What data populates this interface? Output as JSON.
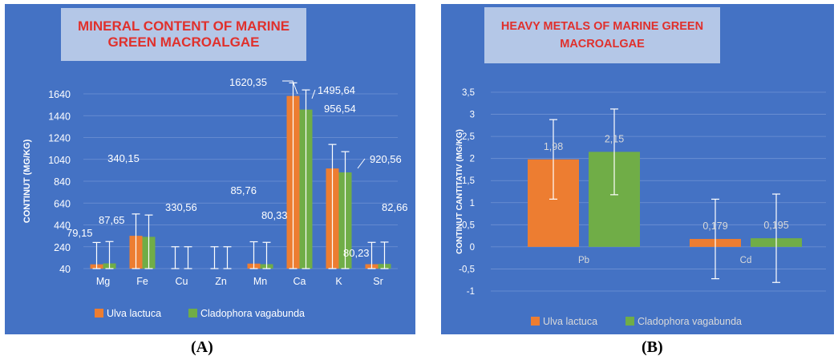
{
  "colors": {
    "background": "#4472c4",
    "title_box": "#b4c7e7",
    "title_text": "#e0302c",
    "ulva": "#ed7d31",
    "cladophora": "#70ad47",
    "text": "#ffffff",
    "grid": "#6f92d3"
  },
  "chart_data": [
    {
      "id": "A",
      "type": "bar",
      "title_lines": [
        "MINERAL CONTENT OF MARINE",
        "GREEN MACROALGAE"
      ],
      "ylabel": "CONTINUT (MG/KG)",
      "ylim": [
        40,
        1640
      ],
      "yticks": [
        40,
        240,
        440,
        640,
        840,
        1040,
        1240,
        1440,
        1640
      ],
      "categories": [
        "Mg",
        "Fe",
        "Cu",
        "Zn",
        "Mn",
        "Ca",
        "K",
        "Sr"
      ],
      "series": [
        {
          "name": "Ulva lactuca",
          "values": [
            79.15,
            340.15,
            0,
            0,
            85.76,
            1620.35,
            956.54,
            80.23
          ],
          "errors": [
            200,
            200,
            200,
            200,
            200,
            120,
            220,
            200
          ]
        },
        {
          "name": "Cladophora vagabunda",
          "values": [
            87.65,
            330.56,
            0,
            0,
            80.33,
            1495.64,
            920.56,
            82.66
          ],
          "errors": [
            200,
            200,
            200,
            200,
            200,
            180,
            190,
            200
          ]
        }
      ],
      "data_labels": [
        "79,15",
        "87,65",
        "340,15",
        "330,56",
        "85,76",
        "80,33",
        "1620,35",
        "1495,64",
        "956,54",
        "920,56",
        "80,23",
        "82,66"
      ],
      "legend": [
        "Ulva lactuca",
        "Cladophora vagabunda"
      ],
      "legend_position": "bottom",
      "grid": true
    },
    {
      "id": "B",
      "type": "bar",
      "title_lines": [
        "HEAVY METALS OF MARINE GREEN",
        "MACROALGAE"
      ],
      "ylabel": "CONTINUT CANTITATIV (MG/KG)",
      "ylim": [
        -1,
        3.5
      ],
      "yticks": [
        "-1",
        "-0,5",
        "0",
        "0,5",
        "1",
        "1,5",
        "2",
        "2,5",
        "3",
        "3,5"
      ],
      "categories": [
        "Pb",
        "Cd"
      ],
      "series": [
        {
          "name": "Ulva lactuca",
          "values": [
            1.98,
            0.179
          ],
          "errors": [
            0.9,
            0.9
          ]
        },
        {
          "name": "Cladophora vagabunda",
          "values": [
            2.15,
            0.195
          ],
          "errors": [
            0.97,
            1.0
          ]
        }
      ],
      "data_labels": [
        "1,98",
        "2,15",
        "0,179",
        "0,195"
      ],
      "legend": [
        "Ulva lactuca",
        "Cladophora vagabunda"
      ],
      "legend_position": "bottom",
      "grid": true
    }
  ],
  "captions": {
    "a": "(A)",
    "b": "(B)"
  }
}
